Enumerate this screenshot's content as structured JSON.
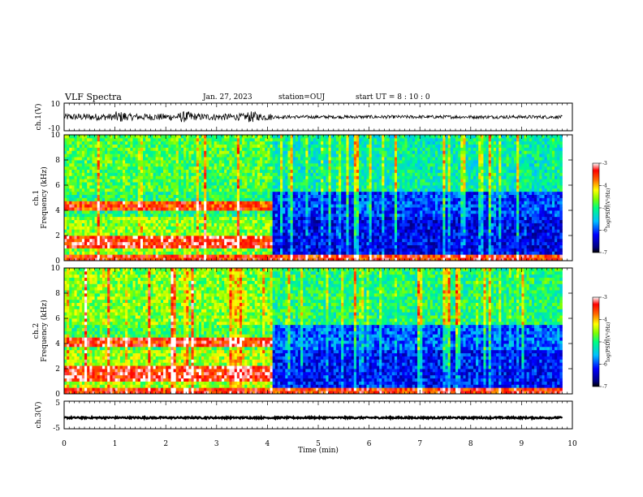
{
  "header": {
    "title": "VLF Spectra",
    "date": "Jan. 27, 2023",
    "station": "station=OUJ",
    "start": "start UT =  8 : 10 : 0"
  },
  "chart_data": {
    "type": "heatmap",
    "time_axis": {
      "label": "Time (min)",
      "range": [
        0,
        10
      ],
      "ticks": [
        "0",
        "1",
        "2",
        "3",
        "4",
        "5",
        "6",
        "7",
        "8",
        "9",
        "10"
      ],
      "data_end_min": 9.8
    },
    "panels": [
      {
        "id": "ch1_waveform",
        "type": "line",
        "ylabel": "ch.1(V)",
        "ylim": [
          -10,
          10
        ],
        "yticks": [
          "10",
          "-10"
        ],
        "regimes": [
          {
            "t_start": 0.0,
            "t_end": 4.1,
            "amplitude_V": 2.5
          },
          {
            "t_start": 4.1,
            "t_end": 9.8,
            "amplitude_V": 1.2
          }
        ],
        "bursts_min": [
          1.1,
          2.4,
          3.7
        ]
      },
      {
        "id": "ch1_spectrogram",
        "type": "heatmap",
        "ylabel_top": "ch.1",
        "ylabel": "Frequency (kHz)",
        "ylim": [
          0,
          10
        ],
        "yticks": [
          "0",
          "2",
          "4",
          "6",
          "8",
          "10"
        ],
        "colorbar": {
          "label": "log(PSD)(V²/Hz)",
          "range": [
            -7,
            -3
          ],
          "ticks": [
            "-3",
            "-4",
            "-5",
            "-6",
            "-7"
          ]
        },
        "regimes": [
          {
            "t_start": 0.0,
            "t_end": 4.1,
            "mean_log_psd_high_band": -4.8,
            "mean_log_psd_low_band": -4.6
          },
          {
            "t_start": 4.1,
            "t_end": 9.8,
            "mean_log_psd_high_band": -5.2,
            "mean_log_psd_low_band": -6.3
          }
        ],
        "bands_kHz": [
          {
            "f_low": 3.9,
            "f_high": 4.7,
            "t_start": 0.0,
            "t_end": 4.1,
            "log_psd": -3.6
          },
          {
            "f_low": 1.1,
            "f_high": 2.0,
            "t_start": 0.0,
            "t_end": 4.1,
            "log_psd": -3.4
          },
          {
            "f_low": 0.0,
            "f_high": 0.4,
            "t_start": 0.0,
            "t_end": 9.8,
            "log_psd": -3.5
          }
        ]
      },
      {
        "id": "ch2_spectrogram",
        "type": "heatmap",
        "ylabel_top": "ch.2",
        "ylabel": "Frequency (kHz)",
        "ylim": [
          0,
          10
        ],
        "yticks": [
          "0",
          "2",
          "4",
          "6",
          "8",
          "10"
        ],
        "colorbar": {
          "label": "log(PSD)(V²/Hz)",
          "range": [
            -7,
            -3
          ],
          "ticks": [
            "-3",
            "-4",
            "-5",
            "-6",
            "-7"
          ]
        },
        "regimes": [
          {
            "t_start": 0.0,
            "t_end": 4.1,
            "mean_log_psd_high_band": -4.6,
            "mean_log_psd_low_band": -4.5
          },
          {
            "t_start": 4.1,
            "t_end": 9.8,
            "mean_log_psd_high_band": -5.0,
            "mean_log_psd_low_band": -6.2
          }
        ],
        "bands_kHz": [
          {
            "f_low": 3.7,
            "f_high": 4.6,
            "t_start": 0.0,
            "t_end": 4.1,
            "log_psd": -3.5
          },
          {
            "f_low": 1.0,
            "f_high": 2.2,
            "t_start": 0.0,
            "t_end": 4.1,
            "log_psd": -3.4
          },
          {
            "f_low": 0.0,
            "f_high": 0.4,
            "t_start": 0.0,
            "t_end": 9.8,
            "log_psd": -3.5
          }
        ]
      },
      {
        "id": "ch3_waveform",
        "type": "line",
        "ylabel": "ch.3(V)",
        "ylim": [
          -5,
          5
        ],
        "yticks": [
          "5",
          "-5"
        ],
        "level_V": -1,
        "amplitude_V": 0.3
      }
    ],
    "colormap": [
      "#000080",
      "#0000ff",
      "#0080ff",
      "#00ffff",
      "#00ff80",
      "#80ff00",
      "#ffff00",
      "#ff8000",
      "#ff0000",
      "#ffffff"
    ]
  }
}
